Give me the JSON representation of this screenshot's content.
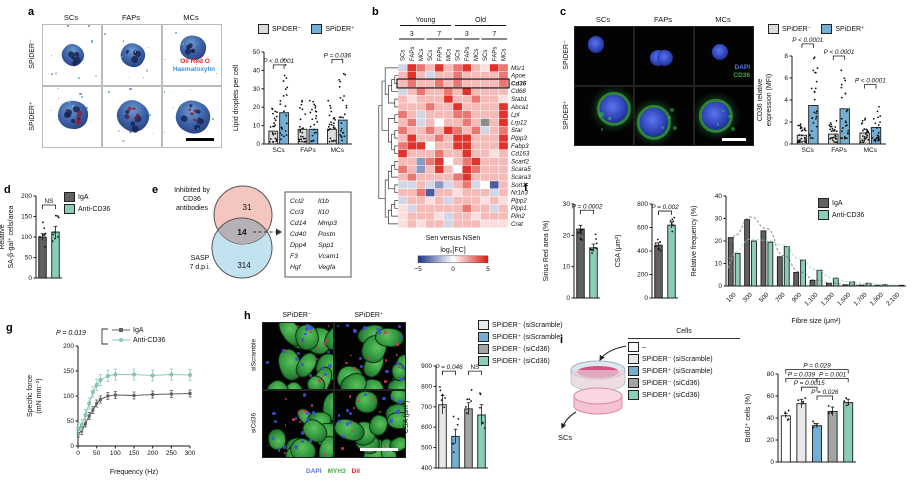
{
  "colors": {
    "spider_neg": "#dcdcdc",
    "spider_pos": "#74aed2",
    "iga": "#616161",
    "anti_cd36": "#8bceb8",
    "ctrl_white": "#ffffff",
    "si_neg_scramble": "#e8e8e8",
    "si_pos_scramble": "#74aed2",
    "si_neg_cd36": "#a4a4a4",
    "si_pos_cd36": "#8bceb8",
    "heat_pos": "#dc1c13",
    "heat_neg": "#1d3286",
    "heat_na": "#8c8c8c",
    "venn_top": "#f3c6bf",
    "venn_bottom": "#c3e2ef",
    "venn_overlap": "#b7b0b7",
    "oil_red_o": "#e8262a",
    "haematoxylin": "#3f8fd2",
    "dapi": "#4050d8",
    "myh3": "#3fae46",
    "dii": "#e8262a"
  },
  "panel_a": {
    "label": "a",
    "col_headers": [
      "SCs",
      "FAPs",
      "MCs"
    ],
    "row_headers": [
      "SPiDER⁻",
      "SPiDER⁺"
    ],
    "stain_labels": [
      "Oil Red O",
      "Haematoxylin"
    ]
  },
  "panel_b": {
    "label": "b",
    "group_headers": [
      "Young",
      "Old"
    ],
    "time_headers": [
      "3",
      "7",
      "3",
      "7"
    ],
    "col_labels": [
      "SCs",
      "FAPs",
      "MCs",
      "SCs",
      "FAPs",
      "MCs",
      "SCs",
      "FAPs",
      "MCs",
      "SCs",
      "FAPs",
      "MCs"
    ],
    "caption": "Sen versus NSen",
    "legend_title": "log₂[FC]",
    "legend_ticks": [
      "−5",
      "0",
      "5"
    ],
    "highlight_row": "Cd36"
  },
  "panel_c": {
    "label": "c",
    "col_headers": [
      "SCs",
      "FAPs",
      "MCs"
    ],
    "row_headers": [
      "SPiDER⁻",
      "SPiDER⁺"
    ],
    "stain_labels": [
      "DAPI",
      "CD36"
    ]
  },
  "panel_d": {
    "label": "d",
    "legend": [
      "IgA",
      "Anti-CD36"
    ]
  },
  "panel_e": {
    "label": "e",
    "top_label_lines": [
      "Inhibited by",
      "CD36",
      "antibodies"
    ],
    "bottom_label_lines": [
      "SASP",
      "7 d.p.i."
    ],
    "top_count": "31",
    "overlap_count": "14",
    "bottom_count": "314",
    "genes_col1": [
      "Ccl2",
      "Ccl3",
      "Cd14",
      "Cd40",
      "Dpp4",
      "F3",
      "Hgf"
    ],
    "genes_col2": [
      "Il1b",
      "Il10",
      "Mmp3",
      "Postn",
      "Spp1",
      "Vcam1",
      "Vegfa"
    ]
  },
  "panel_f": {
    "label": "f",
    "legend": [
      "IgA",
      "Anti-CD36"
    ]
  },
  "panel_g": {
    "label": "g",
    "p_label": "P = 0.019",
    "legend": [
      "IgA",
      "Anti-CD36"
    ]
  },
  "panel_h": {
    "label": "h",
    "col_headers": [
      "SPiDER⁻",
      "SPiDER⁺"
    ],
    "row_headers": [
      "siScramble",
      "siCd36"
    ],
    "stain_labels": [
      "DAPI",
      "MYH3",
      "DiI"
    ],
    "legend": [
      "SPiDER⁻ (siScramble)",
      "SPiDER⁺ (siScramble)",
      "SPiDER⁻ (siCd36)",
      "SPiDER⁺ (siCd36)"
    ]
  },
  "panel_i": {
    "label": "i",
    "legend_title": "Cells",
    "legend": [
      "–",
      "SPiDER⁻ (siScramble)",
      "SPiDER⁺ (siScramble)",
      "SPiDER⁻ (siCd36)",
      "SPiDER⁺ (siCd36)"
    ],
    "schematic_label": "SCs"
  },
  "chart_data": [
    {
      "id": "a_lipid",
      "type": "bar",
      "ylabel_lines": [
        "Lipid droplets per cell"
      ],
      "ylim": [
        0,
        50
      ],
      "yticks": [
        0,
        10,
        20,
        30,
        40,
        50
      ],
      "categories": [
        "SCs",
        "FAPs",
        "MCs"
      ],
      "show_cats": true,
      "series": [
        {
          "name": "SPiDER⁻",
          "color_key": "spider_neg",
          "values": [
            7,
            8,
            8
          ]
        },
        {
          "name": "SPiDER⁺",
          "color_key": "spider_pos",
          "values": [
            17,
            8,
            13
          ]
        }
      ],
      "dots": {
        "mode": "factor",
        "count": 24,
        "factor": 2.8
      },
      "brackets": [
        {
          "a": 0,
          "b": 1,
          "y": 43,
          "label": "P < 0.0001"
        },
        {
          "a": 4,
          "b": 5,
          "y": 46,
          "label": "P = 0.036"
        }
      ]
    },
    {
      "id": "b_heat",
      "type": "heatmap",
      "rows": [
        "Msr1",
        "Apoe",
        "Cd36",
        "Cd68",
        "Stab1",
        "Abca1",
        "Lpl",
        "Lrp12",
        "Star",
        "Plpp3",
        "Fabp3",
        "Cd163",
        "Scarf2",
        "Scara5",
        "Scara3",
        "Sort1",
        "Nr1h3",
        "Plpp2",
        "Plpp1",
        "Plin2",
        "Crat"
      ],
      "vmin": -5,
      "vmax": 5,
      "values": [
        [
          -1,
          4.5,
          3,
          1.5,
          4.5,
          1.5,
          3,
          4.5,
          1.5,
          0.7,
          4.5,
          3
        ],
        [
          1.5,
          4.5,
          1.5,
          -1,
          1.5,
          1.5,
          3,
          1.5,
          1.5,
          1.5,
          1.5,
          3
        ],
        [
          1.5,
          3,
          1.5,
          1.5,
          3,
          1.5,
          3,
          1.5,
          1.5,
          1.5,
          1.5,
          3
        ],
        [
          -1,
          1.5,
          3,
          1.5,
          1.5,
          3,
          1.5,
          4.5,
          1.5,
          1.5,
          1.5,
          1.5
        ],
        [
          1.5,
          0.7,
          1.5,
          1.5,
          1.5,
          4.5,
          1.5,
          1.5,
          3,
          1.5,
          1.5,
          0.7
        ],
        [
          1.5,
          1.5,
          1.5,
          3,
          1.5,
          1.5,
          4.5,
          1.5,
          1.5,
          1.5,
          1.5,
          4.5
        ],
        [
          3,
          1.5,
          -1,
          1.5,
          1.5,
          1.5,
          3,
          3,
          1.5,
          1.5,
          1.5,
          4.5
        ],
        [
          1.5,
          3,
          -1,
          1.5,
          0,
          1.5,
          1.5,
          3,
          1.5,
          null,
          1.5,
          4.5
        ],
        [
          3,
          1.5,
          1.5,
          3,
          1.5,
          4.5,
          3,
          1.5,
          3,
          -1,
          1.5,
          3
        ],
        [
          1.5,
          4.5,
          1.5,
          1.5,
          3,
          1.5,
          4.5,
          4.5,
          1.5,
          1.5,
          1.5,
          4.5
        ],
        [
          3,
          4.5,
          4.5,
          0,
          1.5,
          1.5,
          4.5,
          4.5,
          1.5,
          1.5,
          1.5,
          4.5
        ],
        [
          4.5,
          1.5,
          1.5,
          1.5,
          3,
          1.5,
          1.5,
          4.5,
          1.5,
          1.5,
          0.7,
          1.5
        ],
        [
          1.5,
          1.5,
          -2.5,
          3,
          4.5,
          0,
          1.5,
          3,
          4.5,
          1.5,
          1.5,
          1.5
        ],
        [
          3,
          1.5,
          -2.5,
          1.5,
          4.5,
          1.5,
          0,
          4.5,
          3,
          1.5,
          1.5,
          1.5
        ],
        [
          1.5,
          3,
          1.5,
          1.5,
          1.5,
          1.5,
          3,
          4.5,
          1.5,
          1.5,
          1.5,
          1.5
        ],
        [
          -1,
          -1,
          1.5,
          -1,
          -2.5,
          -1,
          1.5,
          3,
          -1,
          0,
          -4,
          1.5
        ],
        [
          1.5,
          1.5,
          3,
          -4,
          1.5,
          1.5,
          0.7,
          1.5,
          1.5,
          1.5,
          -1,
          1.5
        ],
        [
          -1,
          1.5,
          1.5,
          0.7,
          1.5,
          -1,
          1.5,
          1.5,
          1.5,
          0.7,
          1.5,
          0.7
        ],
        [
          0.7,
          -1,
          1.5,
          1.5,
          1.5,
          1.5,
          1.5,
          3,
          1.5,
          1.5,
          -1,
          1.5
        ],
        [
          0.7,
          1.5,
          1.5,
          1.5,
          0.7,
          -1,
          1.5,
          1.5,
          0.7,
          1.5,
          1.5,
          1.5
        ],
        [
          0.7,
          1.5,
          0.7,
          1.5,
          1.5,
          -1,
          1.5,
          1.5,
          1.5,
          0.7,
          0.7,
          0.7
        ]
      ]
    },
    {
      "id": "c_mfi",
      "type": "bar",
      "ylabel_lines": [
        "CD36 relative",
        "expression (MFI)"
      ],
      "ylim": [
        0,
        8
      ],
      "yticks": [
        0,
        2,
        4,
        6,
        8
      ],
      "categories": [
        "SCs",
        "FAPs",
        "MCs"
      ],
      "show_cats": true,
      "series": [
        {
          "name": "SPiDER⁻",
          "color_key": "spider_neg",
          "values": [
            0.8,
            0.9,
            1.0
          ]
        },
        {
          "name": "SPiDER⁺",
          "color_key": "spider_pos",
          "values": [
            3.5,
            3.2,
            1.5
          ]
        }
      ],
      "dots": {
        "mode": "factor",
        "count": 26,
        "factor": 2.2
      },
      "brackets": [
        {
          "a": 0,
          "b": 1,
          "y": 9.1,
          "label": "P < 0.0001"
        },
        {
          "a": 2,
          "b": 3,
          "y": 8.0,
          "label": "P < 0.0001"
        },
        {
          "a": 4,
          "b": 5,
          "y": 5.4,
          "label": "P < 0.0001"
        }
      ]
    },
    {
      "id": "d_sabgal",
      "type": "bar",
      "ylabel_lines": [
        "Relative",
        "SA-β-gal⁺ cells/area"
      ],
      "ylim": [
        0,
        200
      ],
      "yticks": [
        0,
        50,
        100,
        150,
        200
      ],
      "categories": [
        "IgA",
        "Anti-CD36"
      ],
      "show_cats": false,
      "values": [
        100,
        112
      ],
      "errs": [
        8,
        14
      ],
      "color_keys": [
        "iga",
        "anti_cd36"
      ],
      "dots": {
        "mode": "cluster",
        "count": 8,
        "spread": 70
      },
      "brackets": [
        {
          "a": 0,
          "b": 1,
          "y": 178,
          "label": "NS"
        }
      ]
    },
    {
      "id": "f_sirius",
      "type": "bar",
      "ylabel_lines": [
        "Sirius Red area (%)"
      ],
      "ylim": [
        0,
        30
      ],
      "yticks": [
        0,
        10,
        20,
        30
      ],
      "categories": [
        "IgA",
        "Anti-CD36"
      ],
      "show_cats": false,
      "values": [
        22,
        16
      ],
      "errs": [
        1.2,
        1.2
      ],
      "color_keys": [
        "iga",
        "anti_cd36"
      ],
      "dots": {
        "mode": "cluster",
        "count": 9,
        "spread": 9
      },
      "brackets": [
        {
          "a": 0,
          "b": 1,
          "y": 28,
          "label": "P = 0.0002"
        }
      ]
    },
    {
      "id": "f_csa",
      "type": "bar",
      "ylabel_lines": [
        "CSA (μm²)"
      ],
      "ylim": [
        0,
        800
      ],
      "yticks": [
        0,
        200,
        400,
        600,
        800
      ],
      "categories": [
        "IgA",
        "Anti-CD36"
      ],
      "show_cats": false,
      "values": [
        450,
        620
      ],
      "errs": [
        20,
        25
      ],
      "color_keys": [
        "iga",
        "anti_cd36"
      ],
      "dots": {
        "mode": "cluster",
        "count": 7,
        "spread": 130
      },
      "brackets": [
        {
          "a": 0,
          "b": 1,
          "y": 740,
          "label": "P = 0.002"
        }
      ]
    },
    {
      "id": "f_hist",
      "type": "bar",
      "ylabel_lines": [
        "Relative frequency (%)"
      ],
      "xlabel": "Fibre size (μm²)",
      "ylim": [
        0,
        40
      ],
      "yticks": [
        0,
        10,
        20,
        30,
        40
      ],
      "categories": [
        "100",
        "300",
        "500",
        "700",
        "900",
        "1,100",
        "1,300",
        "1,500",
        "1,700",
        "1,900",
        "2,100"
      ],
      "show_cats": true,
      "rotate_cats": true,
      "curves": true,
      "series": [
        {
          "name": "IgA",
          "color_key": "iga",
          "values": [
            21.5,
            29.5,
            24.5,
            13,
            6,
            2.5,
            1.2,
            0.5,
            0.4,
            0.3,
            0.2
          ]
        },
        {
          "name": "Anti-CD36",
          "color_key": "anti_cd36",
          "values": [
            14.5,
            20,
            19.5,
            17.5,
            11.5,
            7,
            3.5,
            1.8,
            1.2,
            0.6,
            0.3
          ]
        }
      ]
    },
    {
      "id": "g_force",
      "type": "line",
      "ylabel_lines": [
        "Specific force",
        "(mN mm⁻²)"
      ],
      "xlabel": "Frequency (Hz)",
      "ylim": [
        0,
        200
      ],
      "yticks": [
        0,
        50,
        100,
        150,
        200
      ],
      "xlim": [
        0,
        300
      ],
      "xticks": [
        0,
        50,
        100,
        150,
        200,
        250,
        300
      ],
      "x": [
        1,
        10,
        20,
        30,
        40,
        50,
        60,
        80,
        100,
        150,
        200,
        250,
        300
      ],
      "series": [
        {
          "name": "IgA",
          "color_key": "iga",
          "marker": "square",
          "err": 7,
          "values": [
            25,
            30,
            45,
            60,
            72,
            85,
            93,
            100,
            102,
            101,
            103,
            104,
            105
          ]
        },
        {
          "name": "Anti-CD36",
          "color_key": "anti_cd36",
          "marker": "circle",
          "err": 11,
          "values": [
            35,
            42,
            62,
            85,
            108,
            122,
            132,
            140,
            143,
            143,
            141,
            143,
            142
          ]
        }
      ]
    },
    {
      "id": "h_csa",
      "type": "bar",
      "ylabel_lines": [
        "CSA (μm²)"
      ],
      "ylim": [
        400,
        900
      ],
      "yticks": [
        400,
        500,
        600,
        700,
        800,
        900
      ],
      "categories": [
        "SPiDER⁻ (siScramble)",
        "SPiDER⁺ (siScramble)",
        "SPiDER⁻ (siCd36)",
        "SPiDER⁺ (siCd36)"
      ],
      "show_cats": false,
      "values": [
        710,
        555,
        690,
        660
      ],
      "errs": [
        45,
        35,
        30,
        50
      ],
      "color_keys": [
        "si_neg_scramble",
        "si_pos_scramble",
        "si_neg_cd36",
        "si_pos_cd36"
      ],
      "dots": {
        "mode": "cluster",
        "count": 6,
        "spread": 230
      },
      "brackets": [
        {
          "a": 0,
          "b": 1,
          "y": 875,
          "label": "P = 0.046"
        },
        {
          "a": 2,
          "b": 3,
          "y": 875,
          "label": "NS"
        }
      ]
    },
    {
      "id": "i_brdu",
      "type": "bar",
      "ylabel_lines": [
        "BrdU⁺ cells (%)"
      ],
      "ylim": [
        0,
        80
      ],
      "yticks": [
        0,
        20,
        40,
        60,
        80
      ],
      "categories": [
        "–",
        "SPiDER⁻ (siScramble)",
        "SPiDER⁺ (siScramble)",
        "SPiDER⁻ (siCd36)",
        "SPiDER⁺ (siCd36)"
      ],
      "show_cats": false,
      "values": [
        42,
        53,
        33,
        46,
        54
      ],
      "errs": [
        2,
        4,
        2,
        4,
        3
      ],
      "color_keys": [
        "ctrl_white",
        "si_neg_scramble",
        "si_pos_scramble",
        "si_neg_cd36",
        "si_pos_cd36"
      ],
      "dots": {
        "mode": "cluster",
        "count": 4,
        "spread": 10
      },
      "brackets": [
        {
          "a": 0,
          "b": 4,
          "y": 84,
          "label": "P = 0.029"
        },
        {
          "a": 0,
          "b": 2,
          "y": 76,
          "label": "P = 0.039"
        },
        {
          "a": 2,
          "b": 4,
          "y": 76,
          "label": "P = 0.001"
        },
        {
          "a": 1,
          "b": 2,
          "y": 68,
          "label": "P = 0.0015"
        },
        {
          "a": 2,
          "b": 3,
          "y": 60,
          "label": "P = 0.026"
        }
      ]
    }
  ]
}
